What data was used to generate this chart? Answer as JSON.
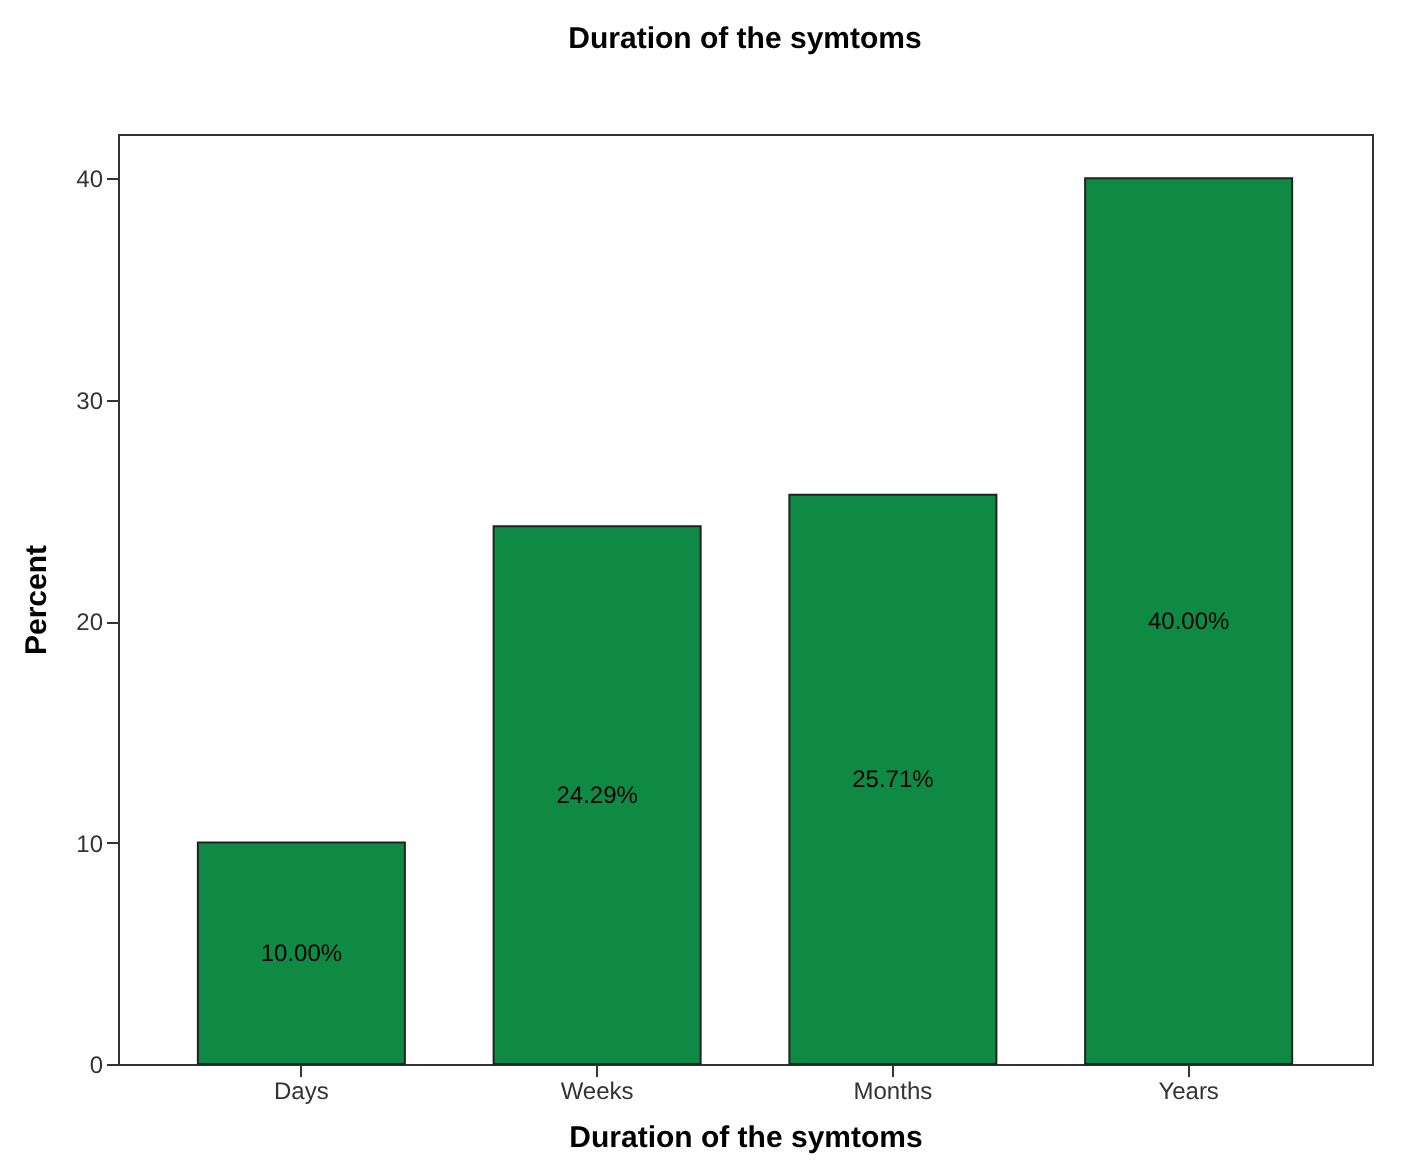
{
  "chart_data": {
    "type": "bar",
    "title": "Duration of the symtoms",
    "xlabel": "Duration of the symtoms",
    "ylabel": "Percent",
    "categories": [
      "Days",
      "Weeks",
      "Months",
      "Years"
    ],
    "values": [
      10.0,
      24.29,
      25.71,
      40.0
    ],
    "value_labels": [
      "10.00%",
      "24.29%",
      "25.71%",
      "40.00%"
    ],
    "color": "#0f8a45",
    "ylim": [
      0,
      42
    ],
    "yticks": [
      0,
      10,
      20,
      30,
      40
    ],
    "grid": false
  }
}
